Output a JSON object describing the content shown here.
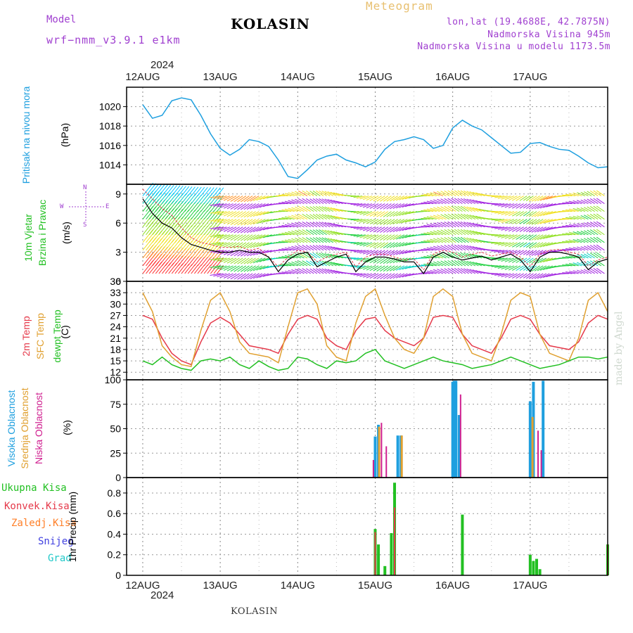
{
  "header": {
    "model_label": "Model",
    "model_name": "wrf−nmm_v3.9.1  e1km",
    "station": "KOLASIN",
    "title": "Meteogram",
    "coords": "lon,lat (19.4688E, 42.7875N)",
    "elevation": "Nadmorska Visina 945m",
    "model_elevation": "Nadmorska Visina u modelu 1173.5m",
    "year": "2024",
    "credit": "made by Angel"
  },
  "footer": {
    "station": "KOLASIN",
    "year": "2024"
  },
  "colors": {
    "pressure": "#1e9fdf",
    "wind_speed": "#000000",
    "wind_gust": "#e5394a",
    "t2m": "#e5394a",
    "tsfc": "#e0a030",
    "tdew": "#22c022",
    "cloud_high": "#1e9fdf",
    "cloud_mid": "#e0a030",
    "cloud_low": "#d02090",
    "precip_total": "#22c022",
    "precip_conv": "#e5394a",
    "precip_frozen": "#ff7f27",
    "snow": "#4040e0",
    "hail": "#20c8c8",
    "purple": "#a040d0"
  },
  "labels": {
    "p1": "Pritisak na nivou mora",
    "p1_unit": "(hPa)",
    "p2_a": "10m Vjetar",
    "p2_b": "Brzina i Pravac",
    "p2_unit": "(m/s)",
    "p2_n": "N",
    "p2_s": "S",
    "p2_w": "W",
    "p2_e": "E",
    "p3_a": "2m Temp",
    "p3_b": "SFC Temp",
    "p3_c": "dewpt Temp",
    "p3_unit": "(C)",
    "p4_a": "Visoka Oblacnost",
    "p4_b": "Srednja Oblacnost",
    "p4_c": "Niska Oblacnost",
    "p4_unit": "(%)",
    "p5_total": "Ukupna Kisa",
    "p5_conv": "Konvek.Kisa",
    "p5_frozen": "Zaledj.Kisa",
    "p5_snow": "Snijeg",
    "p5_hail": "Grad",
    "p5_unit": "1hr Precip (mm)"
  },
  "chart_data": [
    {
      "type": "line",
      "panel": "pressure",
      "x_dates": [
        "12AUG",
        "13AUG",
        "14AUG",
        "15AUG",
        "16AUG",
        "17AUG"
      ],
      "xlim_hours": [
        0,
        144
      ],
      "ylim": [
        1012,
        1022
      ],
      "yticks": [
        1014,
        1016,
        1018,
        1020
      ],
      "grid": true,
      "series": [
        {
          "name": "Pritisak na nivou mora",
          "x": [
            0,
            3,
            6,
            9,
            12,
            15,
            18,
            21,
            24,
            27,
            30,
            33,
            36,
            39,
            42,
            45,
            48,
            51,
            54,
            57,
            60,
            63,
            66,
            69,
            72,
            75,
            78,
            81,
            84,
            87,
            90,
            93,
            96,
            99,
            102,
            105,
            108,
            111,
            114,
            117,
            120,
            123,
            126,
            129,
            132,
            135,
            138,
            141,
            144
          ],
          "values": [
            1020.2,
            1018.8,
            1019.1,
            1020.6,
            1020.9,
            1020.7,
            1019.1,
            1017.2,
            1015.7,
            1015.0,
            1015.6,
            1016.6,
            1016.4,
            1015.9,
            1014.5,
            1012.8,
            1012.6,
            1013.5,
            1014.5,
            1014.9,
            1015.1,
            1014.5,
            1014.2,
            1013.8,
            1014.3,
            1015.6,
            1016.4,
            1016.6,
            1016.9,
            1016.6,
            1015.7,
            1016.0,
            1017.8,
            1018.6,
            1018.0,
            1017.6,
            1016.8,
            1016.0,
            1015.2,
            1015.3,
            1016.2,
            1016.3,
            1015.9,
            1015.6,
            1015.5,
            1014.9,
            1014.2,
            1013.7,
            1013.8
          ]
        }
      ]
    },
    {
      "type": "line",
      "panel": "wind",
      "xlim_hours": [
        0,
        144
      ],
      "ylim": [
        0,
        10
      ],
      "yticks": [
        0,
        3,
        6,
        9
      ],
      "grid": true,
      "series": [
        {
          "name": "speed",
          "x": [
            0,
            3,
            6,
            9,
            12,
            15,
            18,
            21,
            24,
            27,
            30,
            33,
            36,
            39,
            42,
            45,
            48,
            51,
            54,
            57,
            60,
            63,
            66,
            69,
            72,
            75,
            78,
            81,
            84,
            87,
            90,
            93,
            96,
            99,
            102,
            105,
            108,
            111,
            114,
            117,
            120,
            123,
            126,
            129,
            132,
            135,
            138,
            141,
            144
          ],
          "values": [
            8.5,
            7.0,
            6.0,
            5.5,
            4.5,
            3.8,
            3.5,
            3.2,
            3.0,
            3.0,
            3.2,
            3.0,
            3.0,
            2.5,
            1.0,
            2.2,
            2.8,
            3.0,
            1.5,
            2.0,
            2.5,
            2.8,
            1.0,
            2.0,
            2.5,
            2.5,
            2.3,
            2.0,
            2.0,
            0.8,
            2.5,
            3.0,
            2.5,
            2.2,
            2.4,
            2.6,
            2.2,
            2.5,
            2.8,
            2.2,
            1.0,
            2.5,
            3.0,
            3.0,
            2.8,
            2.5,
            1.2,
            2.0,
            2.3
          ]
        },
        {
          "name": "gust",
          "x": [
            0,
            3,
            6,
            9,
            12,
            15,
            18,
            21,
            24,
            27,
            30,
            33,
            36,
            39,
            42,
            45,
            48,
            51,
            54,
            57,
            60,
            63,
            66,
            69,
            72,
            75,
            78,
            81,
            84,
            87,
            90,
            93,
            96,
            99,
            102,
            105,
            108,
            111,
            114,
            117,
            120,
            123,
            126,
            129,
            132,
            135,
            138,
            141,
            144
          ],
          "values": [
            9.5,
            8.5,
            7.5,
            6.8,
            5.5,
            4.5,
            4.0,
            3.8,
            3.5,
            3.5,
            3.6,
            3.2,
            3.4,
            2.5,
            1.5,
            2.5,
            3.2,
            3.0,
            2.0,
            2.5,
            2.8,
            3.0,
            1.5,
            2.5,
            2.8,
            2.8,
            2.5,
            2.2,
            2.3,
            1.2,
            2.8,
            3.2,
            3.0,
            2.5,
            2.8,
            3.0,
            2.6,
            2.8,
            3.0,
            2.5,
            1.5,
            2.8,
            3.2,
            3.3,
            3.0,
            2.8,
            1.6,
            2.2,
            2.5
          ]
        }
      ],
      "barbs_u_v_note": "wind direction arrows colored by speed"
    },
    {
      "type": "line",
      "panel": "temperature",
      "xlim_hours": [
        0,
        144
      ],
      "ylim": [
        10,
        36
      ],
      "yticks": [
        12,
        15,
        18,
        21,
        24,
        27,
        30,
        33,
        36
      ],
      "grid": true,
      "series": [
        {
          "name": "2m Temp",
          "x": [
            0,
            3,
            6,
            9,
            12,
            15,
            18,
            21,
            24,
            27,
            30,
            33,
            36,
            39,
            42,
            45,
            48,
            51,
            54,
            57,
            60,
            63,
            66,
            69,
            72,
            75,
            78,
            81,
            84,
            87,
            90,
            93,
            96,
            99,
            102,
            105,
            108,
            111,
            114,
            117,
            120,
            123,
            126,
            129,
            132,
            135,
            138,
            141,
            144
          ],
          "values": [
            27,
            26,
            21,
            17,
            15,
            14,
            20,
            25,
            26.5,
            25,
            22,
            19,
            18.5,
            18,
            17,
            22,
            26,
            27,
            26,
            21,
            19,
            18,
            23,
            26,
            26.5,
            23,
            21,
            20,
            19,
            21,
            26.5,
            27,
            26.5,
            22,
            19,
            18,
            17,
            21,
            26,
            27,
            26,
            22,
            19,
            18.5,
            18,
            20,
            25,
            27,
            26
          ]
        },
        {
          "name": "SFC Temp",
          "x": [
            0,
            3,
            6,
            9,
            12,
            15,
            18,
            21,
            24,
            27,
            30,
            33,
            36,
            39,
            42,
            45,
            48,
            51,
            54,
            57,
            60,
            63,
            66,
            69,
            72,
            75,
            78,
            81,
            84,
            87,
            90,
            93,
            96,
            99,
            102,
            105,
            108,
            111,
            114,
            117,
            120,
            123,
            126,
            129,
            132,
            135,
            138,
            141,
            144
          ],
          "values": [
            33,
            28,
            19,
            16,
            14,
            13.5,
            23,
            31,
            33,
            28,
            20,
            17,
            16.5,
            16,
            14.5,
            24,
            33,
            34,
            30,
            19,
            16,
            15,
            25,
            32,
            34,
            27,
            21,
            18,
            17,
            21,
            32,
            34,
            32,
            22,
            17,
            16,
            15,
            22,
            31,
            33,
            32,
            22,
            17,
            16,
            15,
            21,
            31,
            33,
            28
          ]
        },
        {
          "name": "dewpt Temp",
          "x": [
            0,
            3,
            6,
            9,
            12,
            15,
            18,
            21,
            24,
            27,
            30,
            33,
            36,
            39,
            42,
            45,
            48,
            51,
            54,
            57,
            60,
            63,
            66,
            69,
            72,
            75,
            78,
            81,
            84,
            87,
            90,
            93,
            96,
            99,
            102,
            105,
            108,
            111,
            114,
            117,
            120,
            123,
            126,
            129,
            132,
            135,
            138,
            141,
            144
          ],
          "values": [
            15,
            14,
            16,
            14,
            13,
            12.5,
            15,
            15.5,
            15,
            16,
            14,
            13,
            15,
            13.5,
            12.5,
            13,
            16,
            15.5,
            14,
            13,
            15,
            14.5,
            15,
            17,
            18,
            15,
            14,
            13,
            14,
            15,
            16,
            15,
            14.5,
            14,
            13,
            13.5,
            14,
            15,
            16,
            15,
            14,
            13,
            13.5,
            14,
            15,
            16,
            16,
            15.5,
            16
          ]
        }
      ]
    },
    {
      "type": "bar",
      "panel": "cloud",
      "xlim_hours": [
        0,
        144
      ],
      "ylim": [
        0,
        100
      ],
      "yticks": [
        0,
        25,
        50,
        75,
        100
      ],
      "grid": true,
      "series": [
        {
          "name": "Visoka Oblacnost",
          "x": [
            72,
            73,
            79,
            80,
            96,
            96.5,
            97,
            98,
            120,
            121,
            124
          ],
          "values": [
            42,
            54,
            43,
            43,
            98,
            99,
            99,
            64,
            78,
            98,
            99
          ]
        },
        {
          "name": "Srednja Oblacnost",
          "x": [
            73,
            80,
            120.5
          ],
          "values": [
            52,
            43,
            62
          ]
        },
        {
          "name": "Niska Oblacnost",
          "x": [
            71,
            73.5,
            75,
            98,
            122,
            123
          ],
          "values": [
            18,
            56,
            32,
            85,
            48,
            28
          ]
        }
      ]
    },
    {
      "type": "bar",
      "panel": "precip",
      "xlim_hours": [
        0,
        144
      ],
      "ylim": [
        0,
        0.95
      ],
      "yticks": [
        0,
        0.2,
        0.4,
        0.6,
        0.8
      ],
      "grid": true,
      "series": [
        {
          "name": "Ukupna Kisa",
          "x": [
            72,
            73,
            75,
            77,
            78,
            99,
            120,
            121,
            122,
            123,
            144
          ],
          "values": [
            0.45,
            0.3,
            0.09,
            0.41,
            0.9,
            0.59,
            0.2,
            0.14,
            0.16,
            0.06,
            0.3
          ]
        },
        {
          "name": "Konvek.Kisa",
          "x": [
            72,
            78,
            144
          ],
          "values": [
            0.42,
            0.66,
            0.3
          ]
        }
      ]
    }
  ]
}
